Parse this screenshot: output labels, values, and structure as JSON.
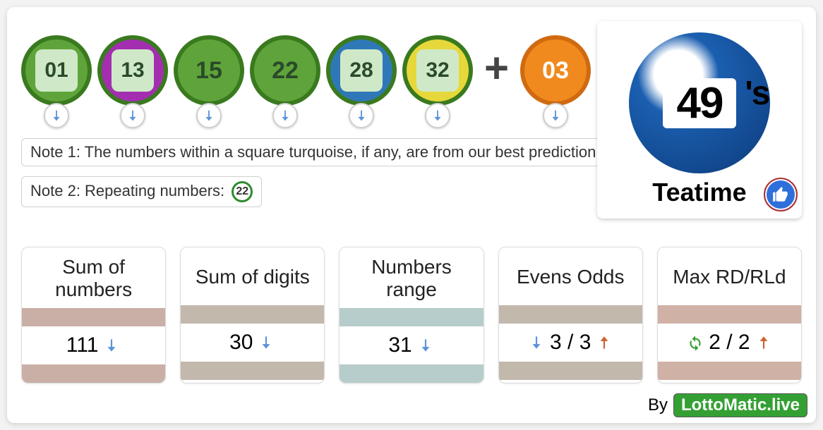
{
  "balls": [
    {
      "num": "01",
      "outer_bg": "#5fa43a",
      "outer_border": "#3a7a1f",
      "inner_bg": "#cfe9c8",
      "inner_text": "#2a4a2a",
      "has_inner": true
    },
    {
      "num": "13",
      "outer_bg": "#a32fb0",
      "outer_border": "#3a7a1f",
      "inner_bg": "#cfe9c8",
      "inner_text": "#2a4a2a",
      "has_inner": true
    },
    {
      "num": "15",
      "outer_bg": "#5fa43a",
      "outer_border": "#3a7a1f",
      "plain_text": "#2a4a2a",
      "has_inner": false
    },
    {
      "num": "22",
      "outer_bg": "#5fa43a",
      "outer_border": "#3a7a1f",
      "plain_text": "#2a4a2a",
      "has_inner": false
    },
    {
      "num": "28",
      "outer_bg": "#2f78b8",
      "outer_border": "#3a7a1f",
      "inner_bg": "#cfe9c8",
      "inner_text": "#2a4a2a",
      "has_inner": true
    },
    {
      "num": "32",
      "outer_bg": "#e6d83a",
      "outer_border": "#3a7a1f",
      "inner_bg": "#cfe9c8",
      "inner_text": "#2a4a2a",
      "has_inner": true
    }
  ],
  "plus": "+",
  "bonus": {
    "num": "03",
    "outer_bg": "#f08a1e",
    "outer_border": "#d06a10",
    "text_color": "#ffffff"
  },
  "arrow_color": "#5a93d8",
  "note1": "Note 1: The numbers within a square turquoise, if any, are from our best prediction.",
  "note2_prefix": "Note 2: Repeating numbers: ",
  "note2_badge": "22",
  "logo": {
    "number": "49",
    "apos": "'s",
    "title": "Teatime"
  },
  "stats": [
    {
      "title": "Sum of numbers",
      "band": "#c9afa6",
      "value": "111",
      "icons": [
        {
          "type": "down",
          "color": "#5a93d8",
          "pos": "after"
        }
      ]
    },
    {
      "title": "Sum of digits",
      "band": "#c2b8ac",
      "value": "30",
      "icons": [
        {
          "type": "down",
          "color": "#5a93d8",
          "pos": "after"
        }
      ]
    },
    {
      "title": "Numbers range",
      "band": "#b7cdcb",
      "value": "31",
      "icons": [
        {
          "type": "down",
          "color": "#5a93d8",
          "pos": "after"
        }
      ]
    },
    {
      "title": "Evens Odds",
      "band": "#c2b8ac",
      "value": "3 / 3",
      "icons": [
        {
          "type": "down",
          "color": "#5a93d8",
          "pos": "before"
        },
        {
          "type": "up",
          "color": "#c9622f",
          "pos": "after"
        }
      ]
    },
    {
      "title": "Max RD/RLd",
      "band": "#cfb2a5",
      "value": "2 / 2",
      "icons": [
        {
          "type": "refresh",
          "color": "#34a034",
          "pos": "before"
        },
        {
          "type": "up",
          "color": "#c9622f",
          "pos": "after"
        }
      ]
    }
  ],
  "footer": {
    "by": "By",
    "site": "LottoMatic.live"
  }
}
